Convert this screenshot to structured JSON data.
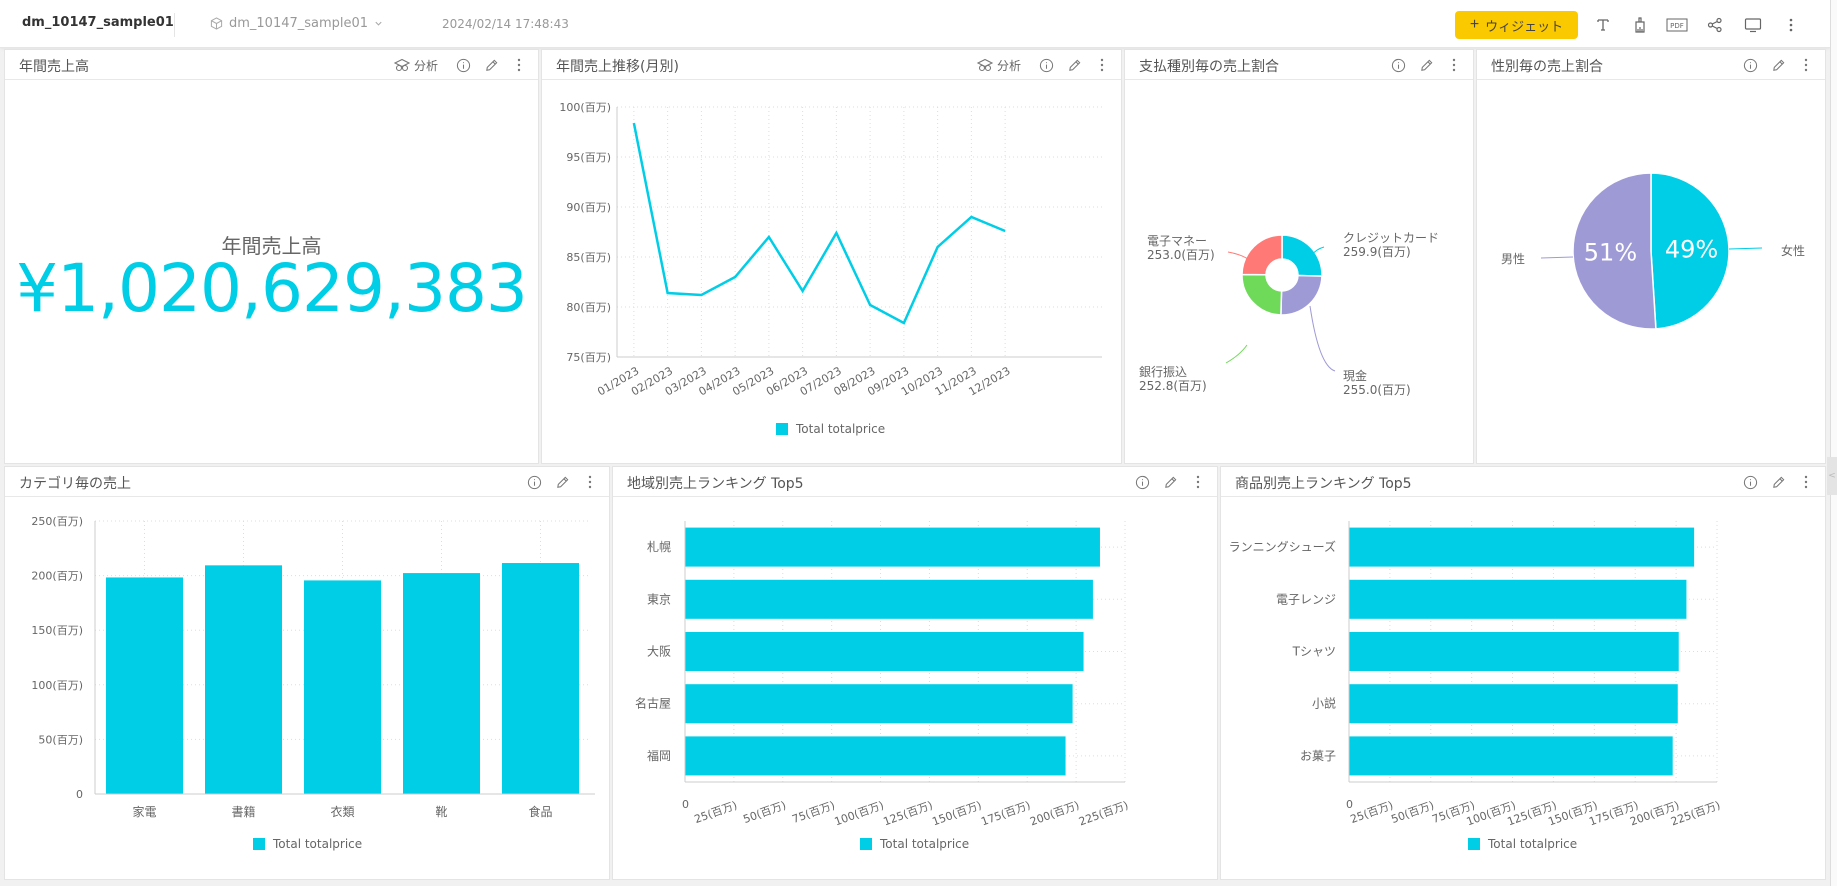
{
  "header": {
    "app_title": "dm_10147_sample01",
    "datasource": "dm_10147_sample01",
    "timestamp": "2024/02/14 17:48:43",
    "add_widget_label": "ウィジェット",
    "icons": [
      "text-icon",
      "paint-brush-icon",
      "pdf-icon",
      "share-icon",
      "monitor-icon",
      "more-vertical-icon"
    ]
  },
  "colors": {
    "accent": "#00cde6",
    "button": "#fbc900",
    "purple": "#9e9ad6",
    "red": "#ff7a76",
    "green": "#6fd95a"
  },
  "common": {
    "analysis_label": "分析",
    "legend_label": "Total totalprice"
  },
  "widgets": {
    "kpi": {
      "title": "年間売上高",
      "label": "年間売上高",
      "value": "¥1,020,629,383"
    },
    "monthly": {
      "title": "年間売上推移(月別)"
    },
    "payment": {
      "title": "支払種別毎の売上割合"
    },
    "gender": {
      "title": "性別毎の売上割合"
    },
    "category": {
      "title": "カテゴリ毎の売上"
    },
    "region": {
      "title": "地域別売上ランキング Top5"
    },
    "product": {
      "title": "商品別売上ランキング Top5"
    }
  },
  "chart_data": [
    {
      "id": "monthly",
      "type": "line",
      "title": "年間売上推移(月別)",
      "categories": [
        "01/2023",
        "02/2023",
        "03/2023",
        "04/2023",
        "05/2023",
        "06/2023",
        "07/2023",
        "08/2023",
        "09/2023",
        "10/2023",
        "11/2023",
        "12/2023"
      ],
      "series": [
        {
          "name": "Total totalprice",
          "values": [
            98.4,
            81.4,
            81.2,
            83.0,
            87.0,
            81.6,
            87.4,
            80.2,
            78.4,
            86.0,
            89.0,
            87.6
          ]
        }
      ],
      "yticks": [
        "75(百万)",
        "80(百万)",
        "85(百万)",
        "90(百万)",
        "95(百万)",
        "100(百万)"
      ],
      "ylim": [
        75,
        100
      ],
      "unit": "百万",
      "grid": true,
      "legend_position": "bottom"
    },
    {
      "id": "payment",
      "type": "pie",
      "donut": true,
      "title": "支払種別毎の売上割合",
      "slices": [
        {
          "label": "クレジットカード",
          "value": 259.9,
          "display": "259.9(百万)",
          "color": "#00cde6"
        },
        {
          "label": "現金",
          "value": 255.0,
          "display": "255.0(百万)",
          "color": "#9e9ad6"
        },
        {
          "label": "銀行振込",
          "value": 252.8,
          "display": "252.8(百万)",
          "color": "#6fd95a"
        },
        {
          "label": "電子マネー",
          "value": 253.0,
          "display": "253.0(百万)",
          "color": "#ff7a76"
        }
      ]
    },
    {
      "id": "gender",
      "type": "pie",
      "title": "性別毎の売上割合",
      "slices": [
        {
          "label": "女性",
          "value": 49,
          "display": "49%",
          "color": "#00cde6"
        },
        {
          "label": "男性",
          "value": 51,
          "display": "51%",
          "color": "#9e9ad6"
        }
      ]
    },
    {
      "id": "category",
      "type": "bar",
      "title": "カテゴリ毎の売上",
      "categories": [
        "家電",
        "書籍",
        "衣類",
        "靴",
        "食品"
      ],
      "series": [
        {
          "name": "Total totalprice",
          "values": [
            198.3,
            209.4,
            195.6,
            202.3,
            211.5
          ]
        }
      ],
      "yticks": [
        "0",
        "50(百万)",
        "100(百万)",
        "150(百万)",
        "200(百万)",
        "250(百万)"
      ],
      "ylim": [
        0,
        250
      ],
      "grid": true,
      "legend_position": "bottom"
    },
    {
      "id": "region",
      "type": "bar",
      "orientation": "horizontal",
      "title": "地域別売上ランキング Top5",
      "categories": [
        "札幌",
        "東京",
        "大阪",
        "名古屋",
        "福岡"
      ],
      "series": [
        {
          "name": "Total totalprice",
          "values": [
            212.2,
            208.6,
            203.8,
            198.2,
            194.6
          ]
        }
      ],
      "xticks": [
        "0",
        "25(百万)",
        "50(百万)",
        "75(百万)",
        "100(百万)",
        "125(百万)",
        "150(百万)",
        "175(百万)",
        "200(百万)",
        "225(百万)"
      ],
      "xlim": [
        0,
        225
      ],
      "grid": true,
      "legend_position": "bottom"
    },
    {
      "id": "product",
      "type": "bar",
      "orientation": "horizontal",
      "title": "商品別売上ランキング Top5",
      "categories": [
        "ランニングシューズ",
        "電子レンジ",
        "Tシャツ",
        "小説",
        "お菓子"
      ],
      "series": [
        {
          "name": "Total totalprice",
          "values": [
            211.0,
            206.3,
            201.6,
            201.0,
            197.9
          ]
        }
      ],
      "xticks": [
        "0",
        "25(百万)",
        "50(百万)",
        "75(百万)",
        "100(百万)",
        "125(百万)",
        "150(百万)",
        "175(百万)",
        "200(百万)",
        "225(百万)"
      ],
      "xlim": [
        0,
        225
      ],
      "grid": true,
      "legend_position": "bottom"
    }
  ]
}
